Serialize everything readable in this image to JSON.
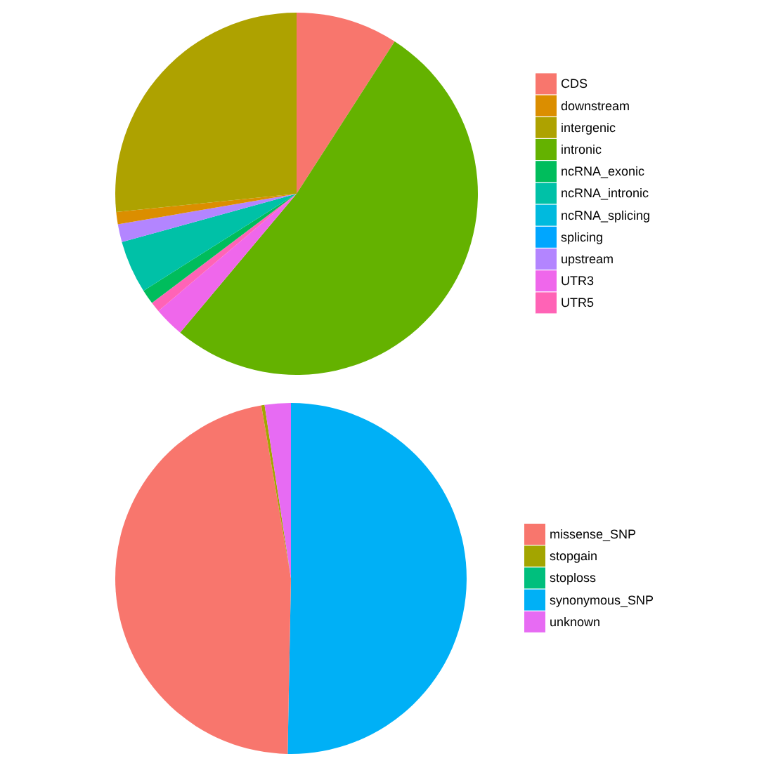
{
  "chart_data": [
    {
      "type": "pie",
      "categories": [
        "CDS",
        "intronic",
        "UTR3",
        "UTR5",
        "ncRNA_exonic",
        "ncRNA_intronic",
        "upstream",
        "downstream",
        "intergenic",
        "ncRNA_splicing",
        "splicing"
      ],
      "values": [
        9.1,
        52.0,
        2.7,
        0.9,
        1.3,
        4.7,
        1.6,
        1.1,
        26.6,
        null,
        null
      ],
      "colors": [
        "#F8766D",
        "#64B200",
        "#EF67EB",
        "#FF63B6",
        "#00BD5C",
        "#00C1A7",
        "#B385FF",
        "#DB8E00",
        "#AEA200",
        "#00BADE",
        "#00A6FF"
      ],
      "legend": "right"
    },
    {
      "type": "pie",
      "categories": [
        "synonymous_SNP",
        "missense_SNP",
        "stopgain",
        "unknown",
        "stoploss"
      ],
      "values": [
        50.3,
        47.0,
        0.3,
        2.4,
        null
      ],
      "colors": [
        "#00B0F6",
        "#F8766D",
        "#A3A500",
        "#E76BF3",
        "#00BF7D"
      ],
      "legend": "right"
    }
  ]
}
